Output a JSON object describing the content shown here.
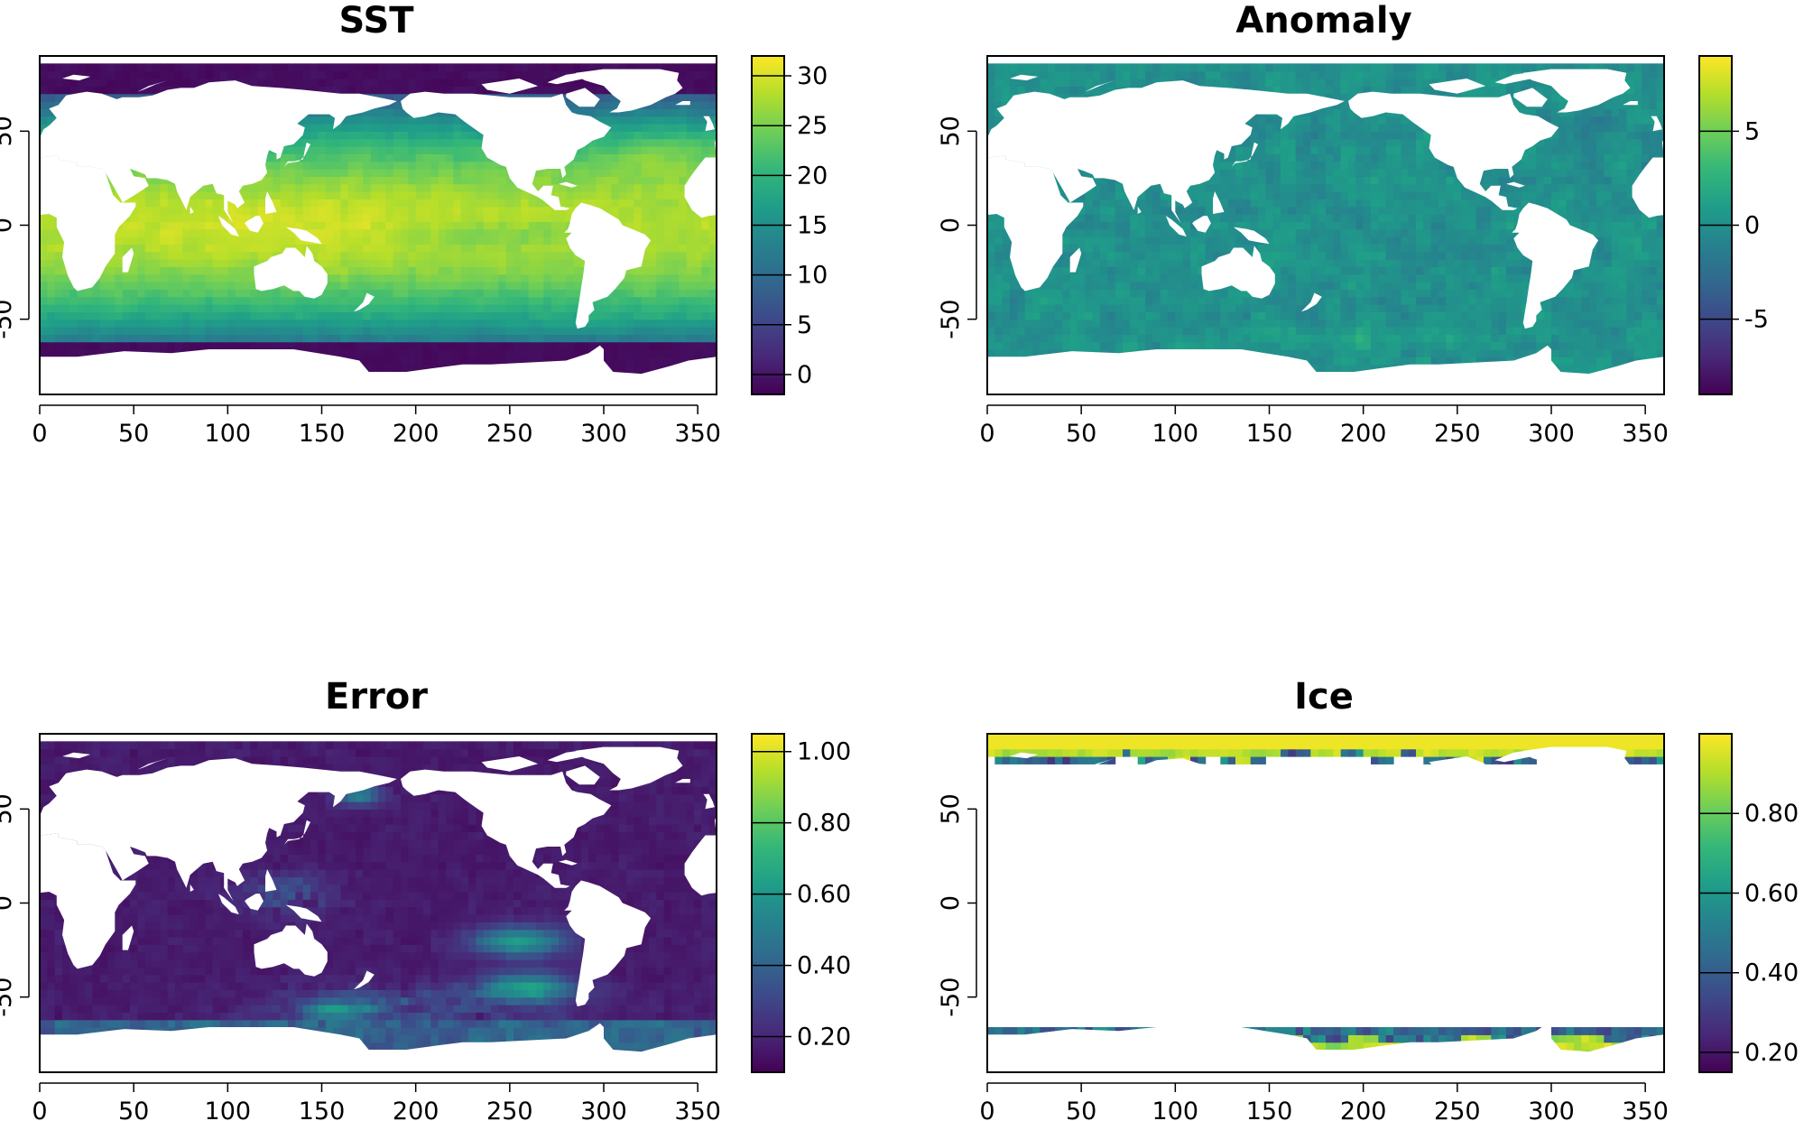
{
  "figure": {
    "layout": "2x2",
    "colormap": "viridis",
    "colormap_stops": [
      "#440154",
      "#482878",
      "#3e4989",
      "#31688e",
      "#26828e",
      "#1f9e89",
      "#35b779",
      "#6ece58",
      "#b5de2b",
      "#fde725"
    ],
    "land_color": "#ffffff"
  },
  "chart_data": [
    {
      "type": "heatmap",
      "title": "SST",
      "xlim": [
        0,
        360
      ],
      "ylim": [
        -90,
        90
      ],
      "x_ticks": [
        "0",
        "50",
        "100",
        "150",
        "200",
        "250",
        "300",
        "350"
      ],
      "y_ticks": [
        "-50",
        "0",
        "50"
      ],
      "colorbar": {
        "ticks": [
          "0",
          "5",
          "10",
          "15",
          "20",
          "25",
          "30"
        ],
        "range": [
          -2,
          32
        ]
      },
      "field": "sst"
    },
    {
      "type": "heatmap",
      "title": "Anomaly",
      "xlim": [
        0,
        360
      ],
      "ylim": [
        -90,
        90
      ],
      "x_ticks": [
        "0",
        "50",
        "100",
        "150",
        "200",
        "250",
        "300",
        "350"
      ],
      "y_ticks": [
        "-50",
        "0",
        "50"
      ],
      "colorbar": {
        "ticks": [
          "-5",
          "0",
          "5"
        ],
        "range": [
          -9,
          9
        ]
      },
      "field": "anomaly"
    },
    {
      "type": "heatmap",
      "title": "Error",
      "xlim": [
        0,
        360
      ],
      "ylim": [
        -90,
        90
      ],
      "x_ticks": [
        "0",
        "50",
        "100",
        "150",
        "200",
        "250",
        "300",
        "350"
      ],
      "y_ticks": [
        "-50",
        "0",
        "50"
      ],
      "colorbar": {
        "ticks": [
          "0.20",
          "0.40",
          "0.60",
          "0.80",
          "1.00"
        ],
        "range": [
          0.1,
          1.05
        ]
      },
      "field": "error"
    },
    {
      "type": "heatmap",
      "title": "Ice",
      "xlim": [
        0,
        360
      ],
      "ylim": [
        -90,
        90
      ],
      "x_ticks": [
        "0",
        "50",
        "100",
        "150",
        "200",
        "250",
        "300",
        "350"
      ],
      "y_ticks": [
        "-50",
        "0",
        "50"
      ],
      "colorbar": {
        "ticks": [
          "0.20",
          "0.40",
          "0.60",
          "0.80"
        ],
        "range": [
          0.15,
          1.0
        ]
      },
      "field": "ice"
    }
  ]
}
